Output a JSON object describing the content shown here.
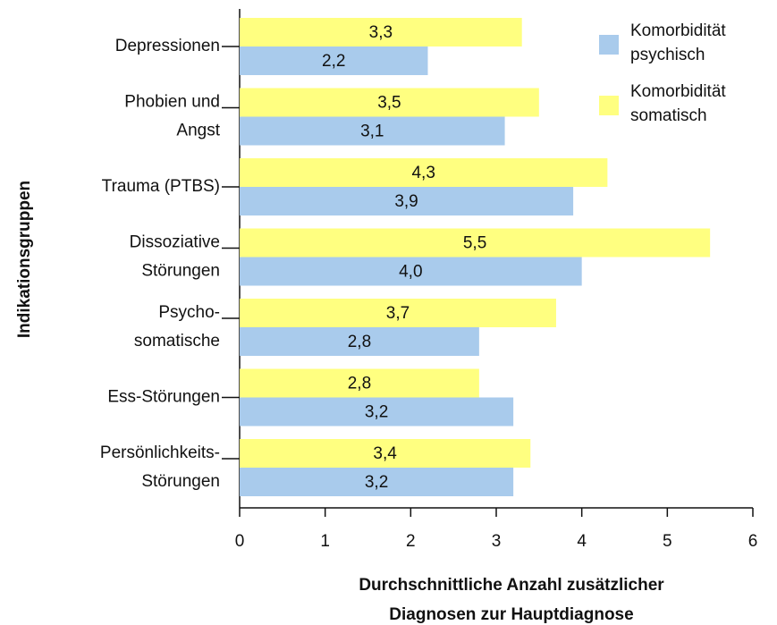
{
  "chart_data": {
    "type": "bar",
    "orientation": "horizontal",
    "categories": [
      [
        "Depressionen"
      ],
      [
        "Phobien und",
        "Angst"
      ],
      [
        "Trauma (PTBS)"
      ],
      [
        "Dissoziative",
        "Störungen"
      ],
      [
        "Psycho-",
        "somatische"
      ],
      [
        "Ess-Störungen"
      ],
      [
        "Persönlichkeits-",
        "Störungen"
      ]
    ],
    "series": [
      {
        "name": "Komorbidität somatisch",
        "color": "#ffff80",
        "values": [
          3.3,
          3.5,
          4.3,
          5.5,
          3.7,
          2.8,
          3.4
        ],
        "value_labels": [
          "3,3",
          "3,5",
          "4,3",
          "5,5",
          "3,7",
          "2,8",
          "3,4"
        ]
      },
      {
        "name": "Komorbidität psychisch",
        "color": "#a9cbec",
        "values": [
          2.2,
          3.1,
          3.9,
          4.0,
          2.8,
          3.2,
          3.2
        ],
        "value_labels": [
          "2,2",
          "3,1",
          "3,9",
          "4,0",
          "2,8",
          "3,2",
          "3,2"
        ]
      }
    ],
    "legend_order": [
      1,
      0
    ],
    "xlim": [
      0,
      6
    ],
    "xticks": [
      0,
      1,
      2,
      3,
      4,
      5,
      6
    ],
    "xlabel": [
      "Durchschnittliche Anzahl zusätzlicher",
      "Diagnosen zur Hauptdiagnose"
    ],
    "ylabel": "Indikationsgruppen"
  }
}
